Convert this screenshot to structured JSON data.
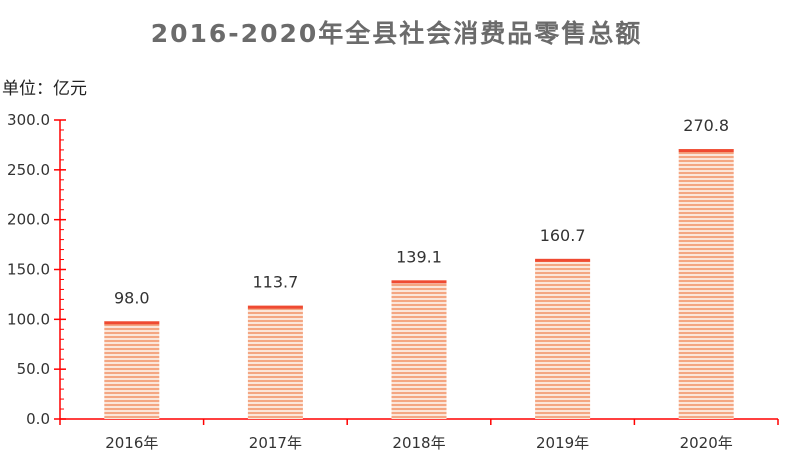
{
  "colors": {
    "axis": "#ff0000",
    "bar_fill": "#fbe6da",
    "bar_stripe": "#f4a682",
    "bar_top": "#ef4a32",
    "title": "#6b6b6b"
  },
  "chart_data": {
    "type": "bar",
    "title": "2016-2020年全县社会消费品零售总额",
    "unit": "单位：亿元",
    "categories": [
      "2016年",
      "2017年",
      "2018年",
      "2019年",
      "2020年"
    ],
    "values": [
      98.0,
      113.7,
      139.1,
      160.7,
      270.8
    ],
    "data_labels": [
      "98.0",
      "113.7",
      "139.1",
      "160.7",
      "270.8"
    ],
    "yticks": [
      0,
      50,
      100,
      150,
      200,
      250,
      300
    ],
    "ytick_labels": [
      "0.0",
      "50.0",
      "100.0",
      "150.0",
      "200.0",
      "250.0",
      "300.0"
    ],
    "ylim": [
      0,
      300
    ],
    "xlabel": "",
    "ylabel": "",
    "grid": false,
    "legend": "none"
  }
}
